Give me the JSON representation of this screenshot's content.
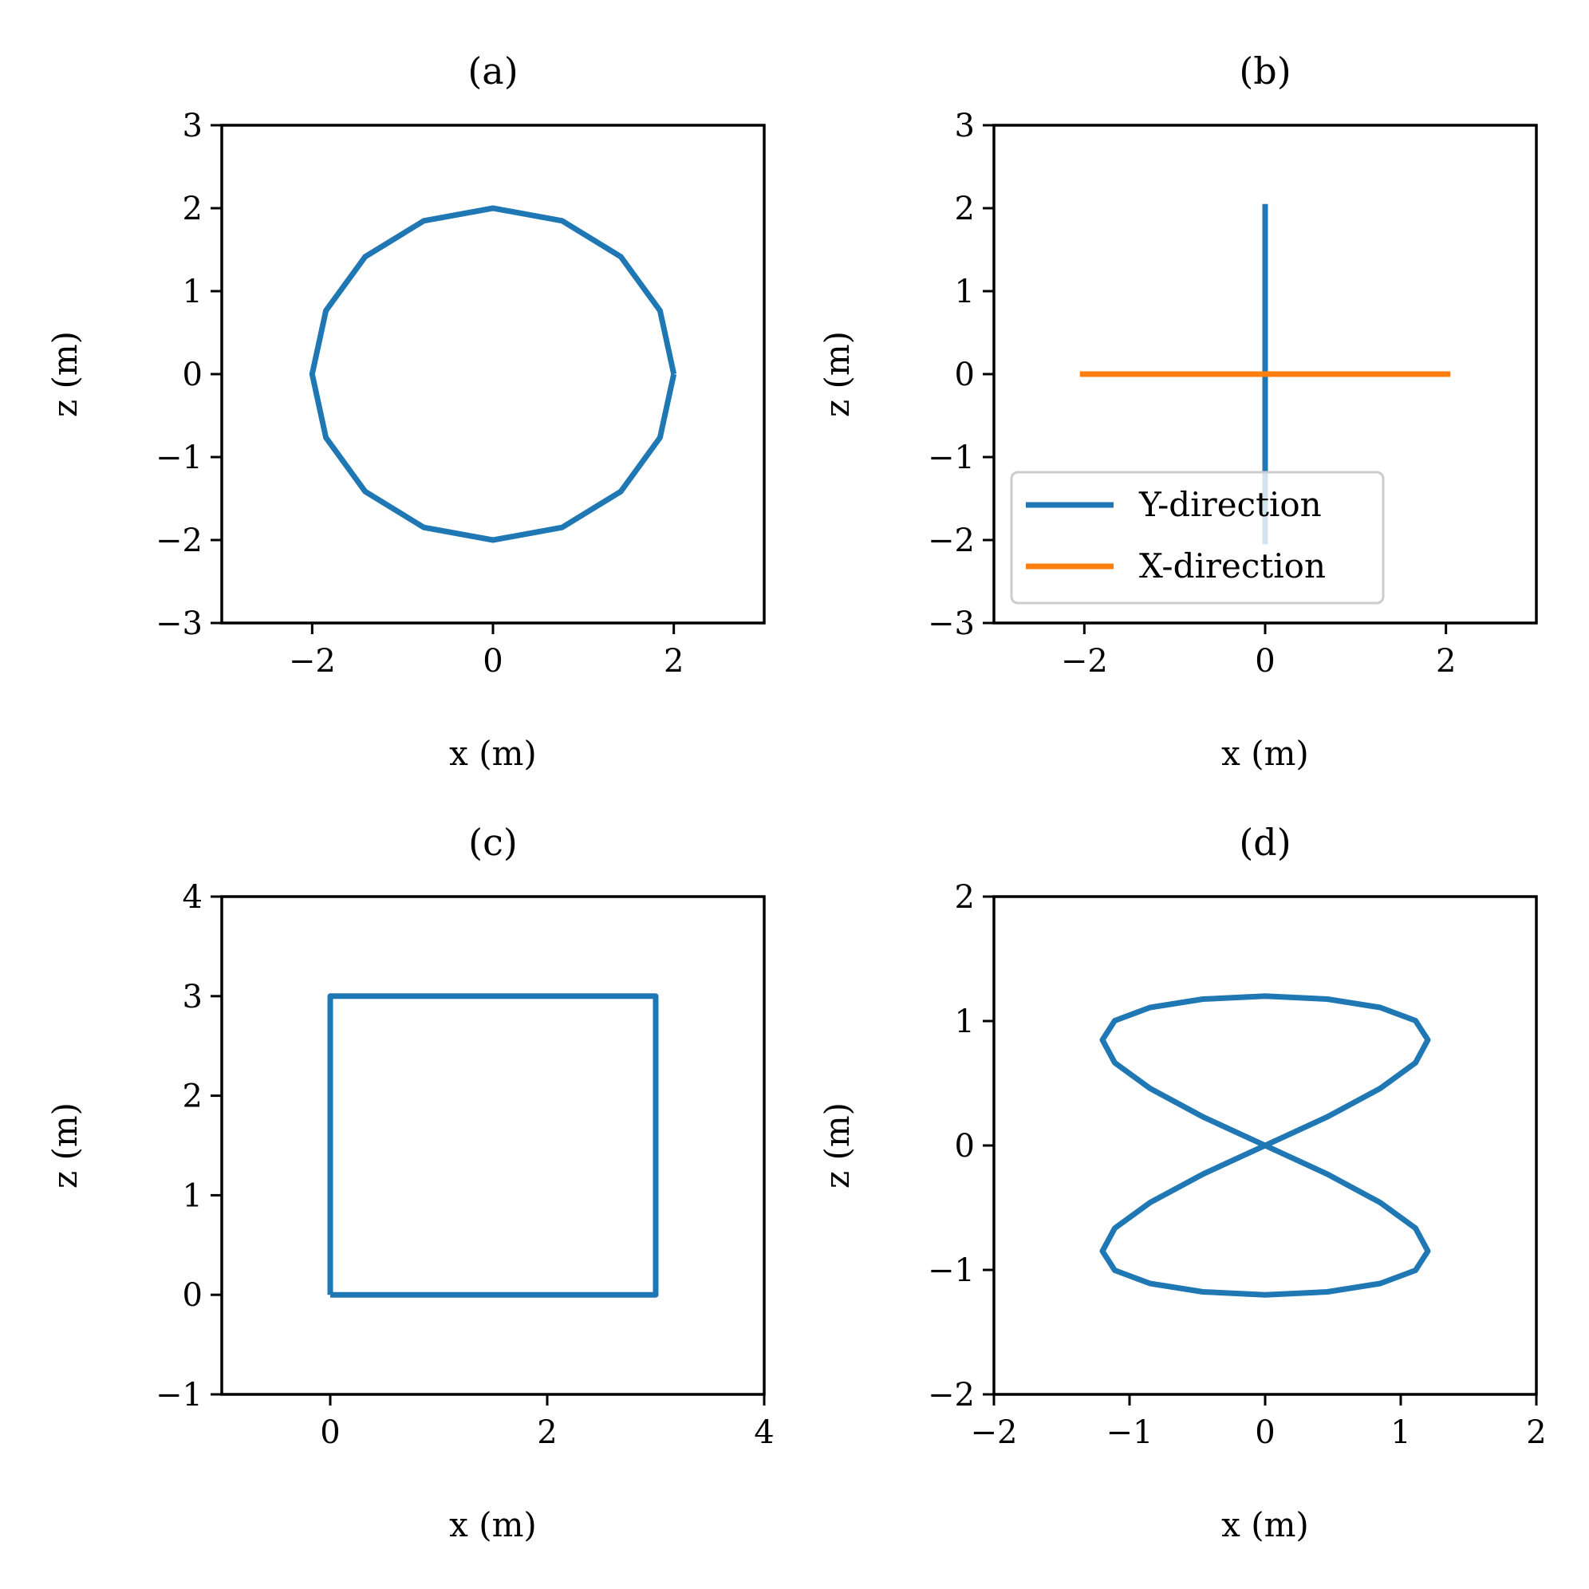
{
  "colors": {
    "blue": "#1f77b4",
    "orange": "#ff7f0e",
    "axis": "#000000",
    "legend_frame": "#cccccc"
  },
  "chart_data": [
    {
      "id": "a",
      "type": "line",
      "title": "(a)",
      "xlabel": "x (m)",
      "ylabel": "z (m)",
      "xlim": [
        -3,
        3
      ],
      "ylim": [
        -3,
        3
      ],
      "xticks": [
        -2,
        0,
        2
      ],
      "yticks": [
        -3,
        -2,
        -1,
        0,
        1,
        2,
        3
      ],
      "grid": false,
      "legend": null,
      "series": [
        {
          "color": "#1f77b4",
          "x": [
            2.0,
            1.848,
            1.414,
            0.765,
            0.0,
            -0.765,
            -1.414,
            -1.848,
            -2.0,
            -1.848,
            -1.414,
            -0.765,
            0.0,
            0.765,
            1.414,
            1.848,
            2.0
          ],
          "y": [
            0.0,
            0.765,
            1.414,
            1.848,
            2.0,
            1.848,
            1.414,
            0.765,
            0.0,
            -0.765,
            -1.414,
            -1.848,
            -2.0,
            -1.848,
            -1.414,
            -0.765,
            0.0
          ]
        }
      ]
    },
    {
      "id": "b",
      "type": "line",
      "title": "(b)",
      "xlabel": "x (m)",
      "ylabel": "z (m)",
      "xlim": [
        -3,
        3
      ],
      "ylim": [
        -3,
        3
      ],
      "xticks": [
        -2,
        0,
        2
      ],
      "yticks": [
        -3,
        -2,
        -1,
        0,
        1,
        2,
        3
      ],
      "grid": false,
      "legend": "lower-left",
      "series": [
        {
          "name": "Y-direction",
          "color": "#1f77b4",
          "x": [
            0,
            0
          ],
          "y": [
            -2.05,
            2.05
          ]
        },
        {
          "name": "X-direction",
          "color": "#ff7f0e",
          "x": [
            -2.05,
            2.05
          ],
          "y": [
            0,
            0
          ]
        }
      ]
    },
    {
      "id": "c",
      "type": "line",
      "title": "(c)",
      "xlabel": "x (m)",
      "ylabel": "z (m)",
      "xlim": [
        -1,
        4
      ],
      "ylim": [
        -1,
        4
      ],
      "xticks": [
        0,
        2,
        4
      ],
      "yticks": [
        -1,
        0,
        1,
        2,
        3,
        4
      ],
      "grid": false,
      "legend": null,
      "series": [
        {
          "color": "#1f77b4",
          "x": [
            0,
            3,
            3,
            0,
            0
          ],
          "y": [
            0,
            0,
            3,
            3,
            0
          ]
        }
      ]
    },
    {
      "id": "d",
      "type": "line",
      "title": "(d)",
      "xlabel": "x (m)",
      "ylabel": "z (m)",
      "xlim": [
        -2,
        2
      ],
      "ylim": [
        -2,
        2
      ],
      "xticks": [
        -2,
        -1,
        0,
        1,
        2
      ],
      "yticks": [
        -2,
        -1,
        0,
        1,
        2
      ],
      "grid": false,
      "legend": null,
      "series": [
        {
          "color": "#1f77b4",
          "x": [
            0.0,
            0.459,
            0.849,
            1.109,
            1.2,
            1.109,
            0.849,
            0.459,
            0.0,
            -0.459,
            -0.849,
            -1.109,
            -1.2,
            -1.109,
            -0.849,
            -0.459,
            0.0,
            0.459,
            0.849,
            1.109,
            1.2,
            1.109,
            0.849,
            0.459,
            0.0,
            -0.459,
            -0.849,
            -1.109,
            -1.2,
            -1.109,
            -0.849,
            -0.459,
            0.0
          ],
          "y": [
            0.0,
            0.23,
            0.459,
            0.665,
            0.849,
            1.003,
            1.109,
            1.176,
            1.2,
            1.176,
            1.109,
            1.003,
            0.849,
            0.665,
            0.459,
            0.23,
            0.0,
            -0.23,
            -0.459,
            -0.665,
            -0.849,
            -1.003,
            -1.109,
            -1.176,
            -1.2,
            -1.176,
            -1.109,
            -1.003,
            -0.849,
            -0.665,
            -0.459,
            -0.23,
            0.0
          ]
        }
      ]
    }
  ]
}
